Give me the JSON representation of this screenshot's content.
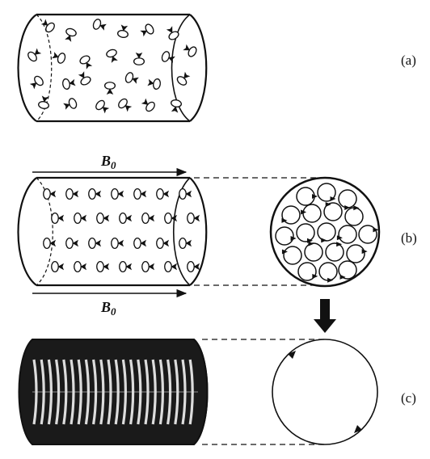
{
  "panels": {
    "a": {
      "label": "(a)",
      "description": "cylinder-random-spins"
    },
    "b": {
      "label": "(b)",
      "field_label": "B",
      "field_subscript": "0"
    },
    "c": {
      "label": "(c)"
    }
  },
  "colors": {
    "ink": "#111111",
    "background": "#ffffff"
  }
}
